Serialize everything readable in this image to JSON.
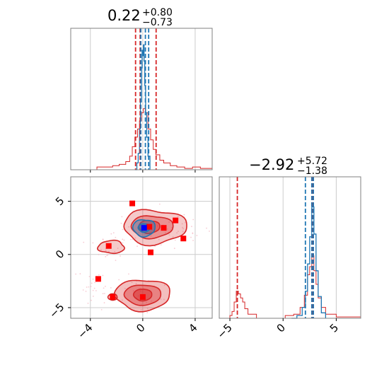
{
  "chart_data": {
    "type": "corner",
    "parameters": [
      {
        "title": {
          "main": "0.22",
          "plus": "+0.80",
          "minus": "−0.73"
        },
        "median": 0.22,
        "q_low": -0.51,
        "q_high": 1.02,
        "red_lines": [
          -0.55,
          -0.2,
          1.02
        ],
        "blue_lines": [
          -0.15,
          0.2,
          0.45
        ],
        "xlim": [
          -5.5,
          5.3
        ],
        "ticks": [
          -4,
          0,
          4
        ],
        "tick_labels": [
          "−4",
          "0",
          "4"
        ]
      },
      {
        "title": {
          "main": "−2.92",
          "plus": "+5.72",
          "minus": "−1.38"
        },
        "median": -2.92,
        "red_lines": [
          -4.3,
          2.75
        ],
        "blue_lines": [
          2.1,
          2.7,
          2.85
        ],
        "xlim": [
          -6.0,
          7.3
        ],
        "ylim": [
          -6.0,
          7.3
        ],
        "ticks": [
          -5,
          0,
          5
        ],
        "tick_labels": [
          "−5",
          "0",
          "5"
        ]
      }
    ],
    "hist_top_red": [
      [
        -5.5,
        0
      ],
      [
        -4.2,
        0
      ],
      [
        -3.5,
        0.02
      ],
      [
        -2.8,
        0.02
      ],
      [
        -2.3,
        0.03
      ],
      [
        -1.8,
        0.04
      ],
      [
        -1.3,
        0.06
      ],
      [
        -1.0,
        0.1
      ],
      [
        -0.8,
        0.17
      ],
      [
        -0.6,
        0.24
      ],
      [
        -0.4,
        0.3
      ],
      [
        -0.25,
        0.36
      ],
      [
        -0.1,
        0.42
      ],
      [
        0.05,
        0.45
      ],
      [
        0.2,
        0.42
      ],
      [
        0.4,
        0.3
      ],
      [
        0.6,
        0.22
      ],
      [
        0.8,
        0.15
      ],
      [
        1.0,
        0.11
      ],
      [
        1.3,
        0.07
      ],
      [
        1.6,
        0.05
      ],
      [
        2.1,
        0.03
      ],
      [
        2.6,
        0.02
      ],
      [
        3.2,
        0.01
      ],
      [
        3.8,
        0.02
      ],
      [
        4.4,
        0.01
      ],
      [
        5.3,
        0
      ]
    ],
    "hist_top_blue": [
      [
        -0.6,
        0
      ],
      [
        -0.45,
        0.05
      ],
      [
        -0.35,
        0.12
      ],
      [
        -0.25,
        0.3
      ],
      [
        -0.18,
        0.5
      ],
      [
        -0.1,
        0.75
      ],
      [
        -0.05,
        0.88
      ],
      [
        0.0,
        0.84
      ],
      [
        0.05,
        0.92
      ],
      [
        0.1,
        0.8
      ],
      [
        0.15,
        0.62
      ],
      [
        0.22,
        0.42
      ],
      [
        0.3,
        0.24
      ],
      [
        0.4,
        0.1
      ],
      [
        0.55,
        0
      ]
    ],
    "hist_right_red": [
      [
        -6,
        0
      ],
      [
        -5.0,
        0.02
      ],
      [
        -4.8,
        0.05
      ],
      [
        -4.6,
        0.12
      ],
      [
        -4.4,
        0.2
      ],
      [
        -4.2,
        0.18
      ],
      [
        -4.0,
        0.15
      ],
      [
        -3.8,
        0.12
      ],
      [
        -3.6,
        0.07
      ],
      [
        -3.3,
        0.03
      ],
      [
        -2.5,
        0
      ],
      [
        -0.5,
        0
      ],
      [
        0.2,
        0.02
      ],
      [
        1.0,
        0.03
      ],
      [
        1.6,
        0.08
      ],
      [
        2.0,
        0.17
      ],
      [
        2.3,
        0.32
      ],
      [
        2.5,
        0.38
      ],
      [
        2.7,
        0.46
      ],
      [
        2.9,
        0.35
      ],
      [
        3.1,
        0.25
      ],
      [
        3.3,
        0.15
      ],
      [
        3.6,
        0.08
      ],
      [
        4.0,
        0.03
      ],
      [
        5.0,
        0.01
      ],
      [
        7.3,
        0
      ]
    ],
    "hist_right_blue": [
      [
        0.8,
        0
      ],
      [
        1.3,
        0.02
      ],
      [
        1.8,
        0.08
      ],
      [
        2.1,
        0.2
      ],
      [
        2.3,
        0.4
      ],
      [
        2.5,
        0.6
      ],
      [
        2.7,
        0.82
      ],
      [
        2.9,
        0.62
      ],
      [
        3.1,
        0.35
      ],
      [
        3.3,
        0.16
      ],
      [
        3.6,
        0.04
      ],
      [
        4.0,
        0
      ]
    ],
    "squares_red": [
      [
        -0.8,
        4.8
      ],
      [
        -2.6,
        0.8
      ],
      [
        -3.4,
        -2.3
      ],
      [
        -2.3,
        -4.0
      ],
      [
        0.6,
        0.2
      ],
      [
        2.5,
        3.2
      ],
      [
        3.1,
        1.5
      ],
      [
        1.6,
        2.5
      ],
      [
        0.5,
        2.6
      ],
      [
        0.0,
        -4.0
      ]
    ],
    "square_blue": [
      0.1,
      2.5
    ],
    "scatter_seed": 17
  }
}
